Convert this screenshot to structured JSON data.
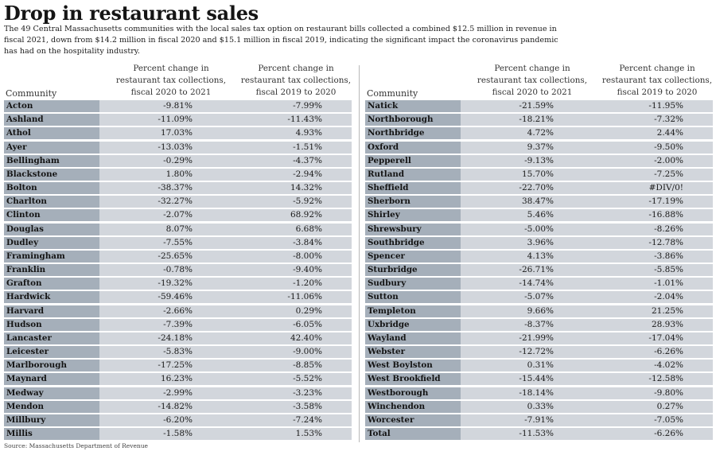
{
  "title": "Drop in restaurant sales",
  "subtitle": "The 49 Central Massachusetts communities with the local sales tax option on restaurant bills collected a combined $12.5 million in revenue in fiscal 2021, down from $14.2 million in fiscal 2020 and $15.1 million in fiscal 2019, indicating the significant impact the coronavirus pandemic has had on the hospitality industry.",
  "source": "Source: Massachusetts Department of Revenue",
  "chart_data": {
    "type": "table",
    "title": "Drop in restaurant sales",
    "columns": [
      "Community",
      "Percent change in restaurant tax collections, fiscal 2020 to 2021",
      "Percent change in restaurant tax collections, fiscal 2019 to 2020"
    ],
    "header": {
      "community": "Community",
      "col1": "Percent change in restaurant tax collections, fiscal 2020 to 2021",
      "col2": "Percent change in restaurant tax collections, fiscal 2019 to 2020"
    },
    "left_rows": [
      {
        "community": "Acton",
        "fy20_21": "-9.81%",
        "fy19_20": "-7.99%"
      },
      {
        "community": "Ashland",
        "fy20_21": "-11.09%",
        "fy19_20": "-11.43%"
      },
      {
        "community": "Athol",
        "fy20_21": "17.03%",
        "fy19_20": "4.93%"
      },
      {
        "community": "Ayer",
        "fy20_21": "-13.03%",
        "fy19_20": "-1.51%"
      },
      {
        "community": "Bellingham",
        "fy20_21": "-0.29%",
        "fy19_20": "-4.37%"
      },
      {
        "community": "Blackstone",
        "fy20_21": "1.80%",
        "fy19_20": "-2.94%"
      },
      {
        "community": "Bolton",
        "fy20_21": "-38.37%",
        "fy19_20": "14.32%"
      },
      {
        "community": "Charlton",
        "fy20_21": "-32.27%",
        "fy19_20": "-5.92%"
      },
      {
        "community": "Clinton",
        "fy20_21": "-2.07%",
        "fy19_20": "68.92%"
      },
      {
        "community": "Douglas",
        "fy20_21": "8.07%",
        "fy19_20": "6.68%"
      },
      {
        "community": "Dudley",
        "fy20_21": "-7.55%",
        "fy19_20": "-3.84%"
      },
      {
        "community": "Framingham",
        "fy20_21": "-25.65%",
        "fy19_20": "-8.00%"
      },
      {
        "community": "Franklin",
        "fy20_21": "-0.78%",
        "fy19_20": "-9.40%"
      },
      {
        "community": "Grafton",
        "fy20_21": "-19.32%",
        "fy19_20": "-1.20%"
      },
      {
        "community": "Hardwick",
        "fy20_21": "-59.46%",
        "fy19_20": "-11.06%"
      },
      {
        "community": "Harvard",
        "fy20_21": "-2.66%",
        "fy19_20": "0.29%"
      },
      {
        "community": "Hudson",
        "fy20_21": "-7.39%",
        "fy19_20": "-6.05%"
      },
      {
        "community": "Lancaster",
        "fy20_21": "-24.18%",
        "fy19_20": "42.40%"
      },
      {
        "community": "Leicester",
        "fy20_21": "-5.83%",
        "fy19_20": "-9.00%"
      },
      {
        "community": "Marlborough",
        "fy20_21": "-17.25%",
        "fy19_20": "-8.85%"
      },
      {
        "community": "Maynard",
        "fy20_21": "16.23%",
        "fy19_20": "-5.52%"
      },
      {
        "community": "Medway",
        "fy20_21": "-2.99%",
        "fy19_20": "-3.23%"
      },
      {
        "community": "Mendon",
        "fy20_21": "-14.82%",
        "fy19_20": "-3.58%"
      },
      {
        "community": "Millbury",
        "fy20_21": "-6.20%",
        "fy19_20": "-7.24%"
      },
      {
        "community": "Millis",
        "fy20_21": "-1.58%",
        "fy19_20": "1.53%"
      }
    ],
    "right_rows": [
      {
        "community": "Natick",
        "fy20_21": "-21.59%",
        "fy19_20": "-11.95%"
      },
      {
        "community": "Northborough",
        "fy20_21": "-18.21%",
        "fy19_20": "-7.32%"
      },
      {
        "community": "Northbridge",
        "fy20_21": "4.72%",
        "fy19_20": "2.44%"
      },
      {
        "community": "Oxford",
        "fy20_21": "9.37%",
        "fy19_20": "-9.50%"
      },
      {
        "community": "Pepperell",
        "fy20_21": "-9.13%",
        "fy19_20": "-2.00%"
      },
      {
        "community": "Rutland",
        "fy20_21": "15.70%",
        "fy19_20": "-7.25%"
      },
      {
        "community": "Sheffield",
        "fy20_21": "-22.70%",
        "fy19_20": "#DIV/0!"
      },
      {
        "community": "Sherborn",
        "fy20_21": "38.47%",
        "fy19_20": "-17.19%"
      },
      {
        "community": "Shirley",
        "fy20_21": "5.46%",
        "fy19_20": "-16.88%"
      },
      {
        "community": "Shrewsbury",
        "fy20_21": "-5.00%",
        "fy19_20": "-8.26%"
      },
      {
        "community": "Southbridge",
        "fy20_21": "3.96%",
        "fy19_20": "-12.78%"
      },
      {
        "community": "Spencer",
        "fy20_21": "4.13%",
        "fy19_20": "-3.86%"
      },
      {
        "community": "Sturbridge",
        "fy20_21": "-26.71%",
        "fy19_20": "-5.85%"
      },
      {
        "community": "Sudbury",
        "fy20_21": "-14.74%",
        "fy19_20": "-1.01%"
      },
      {
        "community": "Sutton",
        "fy20_21": "-5.07%",
        "fy19_20": "-2.04%"
      },
      {
        "community": "Templeton",
        "fy20_21": "9.66%",
        "fy19_20": "21.25%"
      },
      {
        "community": "Uxbridge",
        "fy20_21": "-8.37%",
        "fy19_20": "28.93%"
      },
      {
        "community": "Wayland",
        "fy20_21": "-21.99%",
        "fy19_20": "-17.04%"
      },
      {
        "community": "Webster",
        "fy20_21": "-12.72%",
        "fy19_20": "-6.26%"
      },
      {
        "community": "West Boylston",
        "fy20_21": "0.31%",
        "fy19_20": "-4.02%"
      },
      {
        "community": "West Brookfield",
        "fy20_21": "-15.44%",
        "fy19_20": "-12.58%"
      },
      {
        "community": "Westborough",
        "fy20_21": "-18.14%",
        "fy19_20": "-9.80%"
      },
      {
        "community": "Winchendon",
        "fy20_21": "0.33%",
        "fy19_20": "0.27%"
      },
      {
        "community": "Worcester",
        "fy20_21": "-7.91%",
        "fy19_20": "-7.05%"
      },
      {
        "community": "Total",
        "fy20_21": "-11.53%",
        "fy19_20": "-6.26%"
      }
    ]
  },
  "colors": {
    "name_cell_bg": "#a5afba",
    "value_cell_bg": "#d2d6dc",
    "divider": "#b9b9b9"
  }
}
